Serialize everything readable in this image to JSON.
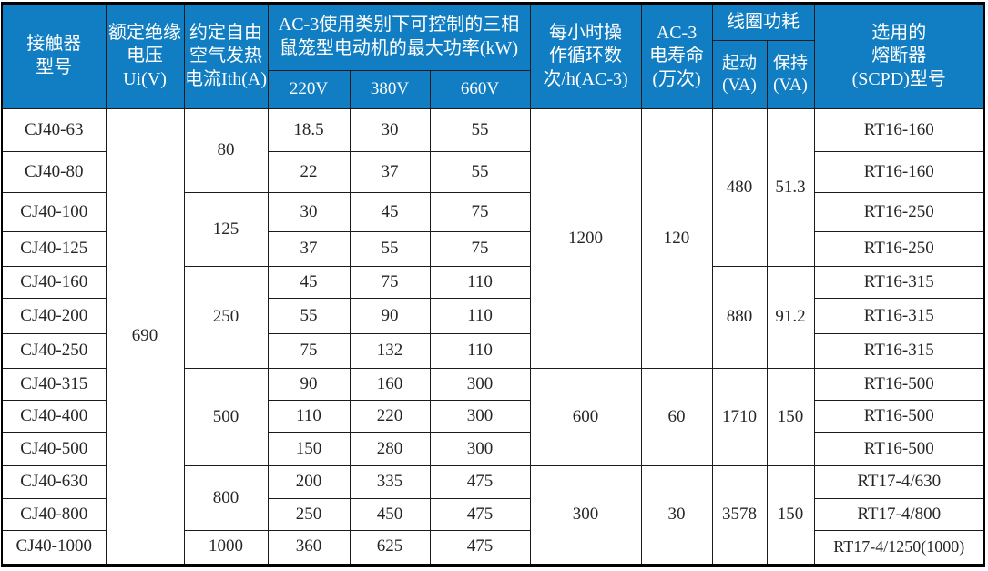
{
  "colors": {
    "header_bg": "#117dc2",
    "header_text": "#ffffff",
    "grid_line": "#1b1b1b",
    "body_text": "#262626"
  },
  "table": {
    "header": {
      "model": "接触器\n型号",
      "ui": "额定绝缘\n电压Ui(V)",
      "ith": "约定自由\n空气发热\n电流Ith(A)",
      "power": "AC-3使用类别下可控制的三相\n鼠笼型电动机的最大功率(kW)",
      "v220": "220V",
      "v380": "380V",
      "v660": "660V",
      "cycles": "每小时操\n作循环数\n次/h(AC-3)",
      "life": "AC-3\n电寿命\n(万次)",
      "coil": "线圈功耗",
      "start": "起动\n(VA)",
      "hold": "保持\n(VA)",
      "fuse": "选用的\n熔断器\n(SCPD)型号"
    },
    "insulation_voltage": "690",
    "rows": [
      {
        "model": "CJ40-63",
        "ith": "80",
        "p220": "18.5",
        "p380": "30",
        "p660": "55",
        "cycles": "1200",
        "life": "120",
        "coil_start": "480",
        "coil_hold": "51.3",
        "fuse": "RT16-160"
      },
      {
        "model": "CJ40-80",
        "p220": "22",
        "p380": "37",
        "p660": "55",
        "fuse": "RT16-160"
      },
      {
        "model": "CJ40-100",
        "ith": "125",
        "p220": "30",
        "p380": "45",
        "p660": "75",
        "fuse": "RT16-250"
      },
      {
        "model": "CJ40-125",
        "p220": "37",
        "p380": "55",
        "p660": "75",
        "fuse": "RT16-250"
      },
      {
        "model": "CJ40-160",
        "ith": "250",
        "p220": "45",
        "p380": "75",
        "p660": "110",
        "coil_start": "880",
        "coil_hold": "91.2",
        "fuse": "RT16-315"
      },
      {
        "model": "CJ40-200",
        "p220": "55",
        "p380": "90",
        "p660": "110",
        "fuse": "RT16-315"
      },
      {
        "model": "CJ40-250",
        "p220": "75",
        "p380": "132",
        "p660": "110",
        "fuse": "RT16-315"
      },
      {
        "model": "CJ40-315",
        "ith": "500",
        "p220": "90",
        "p380": "160",
        "p660": "300",
        "cycles": "600",
        "life": "60",
        "coil_start": "1710",
        "coil_hold": "150",
        "fuse": "RT16-500"
      },
      {
        "model": "CJ40-400",
        "p220": "110",
        "p380": "220",
        "p660": "300",
        "fuse": "RT16-500"
      },
      {
        "model": "CJ40-500",
        "p220": "150",
        "p380": "280",
        "p660": "300",
        "fuse": "RT16-500"
      },
      {
        "model": "CJ40-630",
        "ith": "800",
        "p220": "200",
        "p380": "335",
        "p660": "475",
        "cycles": "300",
        "life": "30",
        "coil_start": "3578",
        "coil_hold": "150",
        "fuse": "RT17-4/630"
      },
      {
        "model": "CJ40-800",
        "p220": "250",
        "p380": "450",
        "p660": "475",
        "fuse": "RT17-4/800"
      },
      {
        "model": "CJ40-1000",
        "ith": "1000",
        "p220": "360",
        "p380": "625",
        "p660": "475",
        "fuse": "RT17-4/1250(1000)"
      }
    ]
  }
}
